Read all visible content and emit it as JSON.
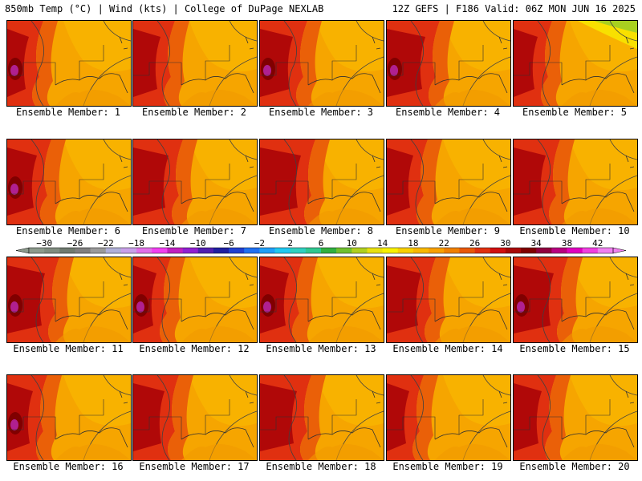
{
  "header": {
    "left": "850mb Temp (°C) | Wind (kts) | College of DuPage NEXLAB",
    "right": "12Z GEFS | F186 Valid: 06Z MON JUN 16 2025"
  },
  "member_label_prefix": "Ensemble Member: ",
  "members": [
    1,
    2,
    3,
    4,
    5,
    6,
    7,
    8,
    9,
    10,
    11,
    12,
    13,
    14,
    15,
    16,
    17,
    18,
    19,
    20
  ],
  "colorbar": {
    "tick_labels": [
      "−30",
      "−26",
      "−22",
      "−18",
      "−14",
      "−10",
      "−6",
      "−2",
      "2",
      "6",
      "10",
      "14",
      "18",
      "22",
      "26",
      "30",
      "34",
      "38",
      "42"
    ],
    "min": -32,
    "max": 44,
    "step": 2,
    "colors": [
      "#8c9a8c",
      "#7f8c7f",
      "#6f7a6f",
      "#7f7f7f",
      "#9a9a9a",
      "#b0b0d8",
      "#c8a0e8",
      "#e070e8",
      "#f040f0",
      "#c020c0",
      "#9020d0",
      "#5020b0",
      "#2020a0",
      "#2040d0",
      "#2070f0",
      "#20a0f8",
      "#20c8f0",
      "#30d0c0",
      "#30c890",
      "#30b040",
      "#70c030",
      "#b0d020",
      "#e8e010",
      "#f8f000",
      "#f8d000",
      "#f8b800",
      "#f8a000",
      "#f08000",
      "#e85808",
      "#e03010",
      "#d01010",
      "#a80808",
      "#800000",
      "#900040",
      "#b80080",
      "#e000c0",
      "#f040e0",
      "#f080f0"
    ]
  }
}
